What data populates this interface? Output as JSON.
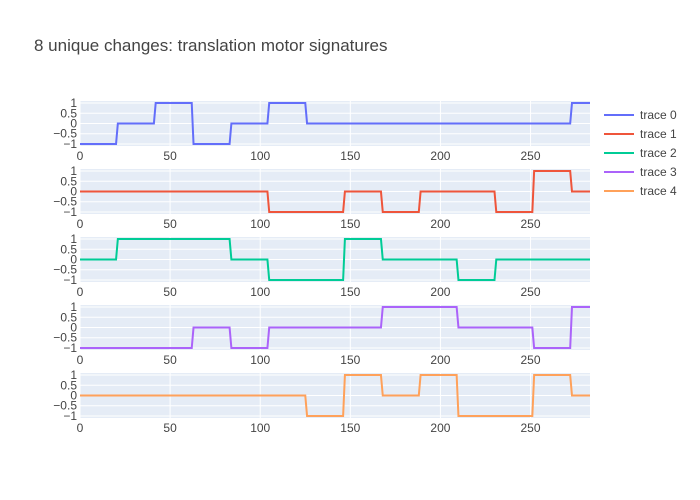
{
  "chart_data": {
    "type": "line",
    "title": "8 unique changes: translation motor signatures",
    "xlabel": "",
    "ylabel": "",
    "xlim": [
      0,
      283
    ],
    "ylim": [
      -1.1,
      1.1
    ],
    "x_ticks": [
      0,
      50,
      100,
      150,
      200,
      250
    ],
    "y_ticks": [
      -1,
      -0.5,
      0,
      0.5,
      1
    ],
    "y_tick_labels": [
      "−1",
      "−0.5",
      "0",
      "0.5",
      "1"
    ],
    "grid": true,
    "legend_position": "right",
    "layout": "5 stacked subplots sharing x axis",
    "series": [
      {
        "name": "trace 0",
        "color": "#636efa",
        "points": [
          [
            0,
            -1
          ],
          [
            20,
            -1
          ],
          [
            21,
            0
          ],
          [
            41,
            0
          ],
          [
            42,
            1
          ],
          [
            62,
            1
          ],
          [
            63,
            -1
          ],
          [
            83,
            -1
          ],
          [
            84,
            0
          ],
          [
            104,
            0
          ],
          [
            105,
            1
          ],
          [
            125,
            1
          ],
          [
            126,
            0
          ],
          [
            272,
            0
          ],
          [
            273,
            1
          ],
          [
            283,
            1
          ]
        ]
      },
      {
        "name": "trace 1",
        "color": "#EF553B",
        "points": [
          [
            0,
            0
          ],
          [
            104,
            0
          ],
          [
            105,
            -1
          ],
          [
            146,
            -1
          ],
          [
            147,
            0
          ],
          [
            167,
            0
          ],
          [
            168,
            -1
          ],
          [
            188,
            -1
          ],
          [
            189,
            0
          ],
          [
            230,
            0
          ],
          [
            231,
            -1
          ],
          [
            251,
            -1
          ],
          [
            252,
            1
          ],
          [
            272,
            1
          ],
          [
            273,
            0
          ],
          [
            283,
            0
          ]
        ]
      },
      {
        "name": "trace 2",
        "color": "#00cc96",
        "points": [
          [
            0,
            0
          ],
          [
            20,
            0
          ],
          [
            21,
            1
          ],
          [
            83,
            1
          ],
          [
            84,
            0
          ],
          [
            104,
            0
          ],
          [
            105,
            -1
          ],
          [
            146,
            -1
          ],
          [
            147,
            1
          ],
          [
            167,
            1
          ],
          [
            168,
            0
          ],
          [
            209,
            0
          ],
          [
            210,
            -1
          ],
          [
            230,
            -1
          ],
          [
            231,
            0
          ],
          [
            283,
            0
          ]
        ]
      },
      {
        "name": "trace 3",
        "color": "#ab63fa",
        "points": [
          [
            0,
            -1
          ],
          [
            62,
            -1
          ],
          [
            63,
            0
          ],
          [
            83,
            0
          ],
          [
            84,
            -1
          ],
          [
            104,
            -1
          ],
          [
            105,
            0
          ],
          [
            167,
            0
          ],
          [
            168,
            1
          ],
          [
            209,
            1
          ],
          [
            210,
            0
          ],
          [
            251,
            0
          ],
          [
            252,
            -1
          ],
          [
            272,
            -1
          ],
          [
            273,
            1
          ],
          [
            283,
            1
          ]
        ]
      },
      {
        "name": "trace 4",
        "color": "#FFA15A",
        "points": [
          [
            0,
            0
          ],
          [
            125,
            0
          ],
          [
            126,
            -1
          ],
          [
            146,
            -1
          ],
          [
            147,
            1
          ],
          [
            167,
            1
          ],
          [
            168,
            0
          ],
          [
            188,
            0
          ],
          [
            189,
            1
          ],
          [
            209,
            1
          ],
          [
            210,
            -1
          ],
          [
            251,
            -1
          ],
          [
            252,
            1
          ],
          [
            272,
            1
          ],
          [
            273,
            0
          ],
          [
            283,
            0
          ]
        ]
      }
    ]
  },
  "colors": {
    "plot_background": "#e5ecf6",
    "grid": "#ffffff",
    "text": "#444444"
  }
}
